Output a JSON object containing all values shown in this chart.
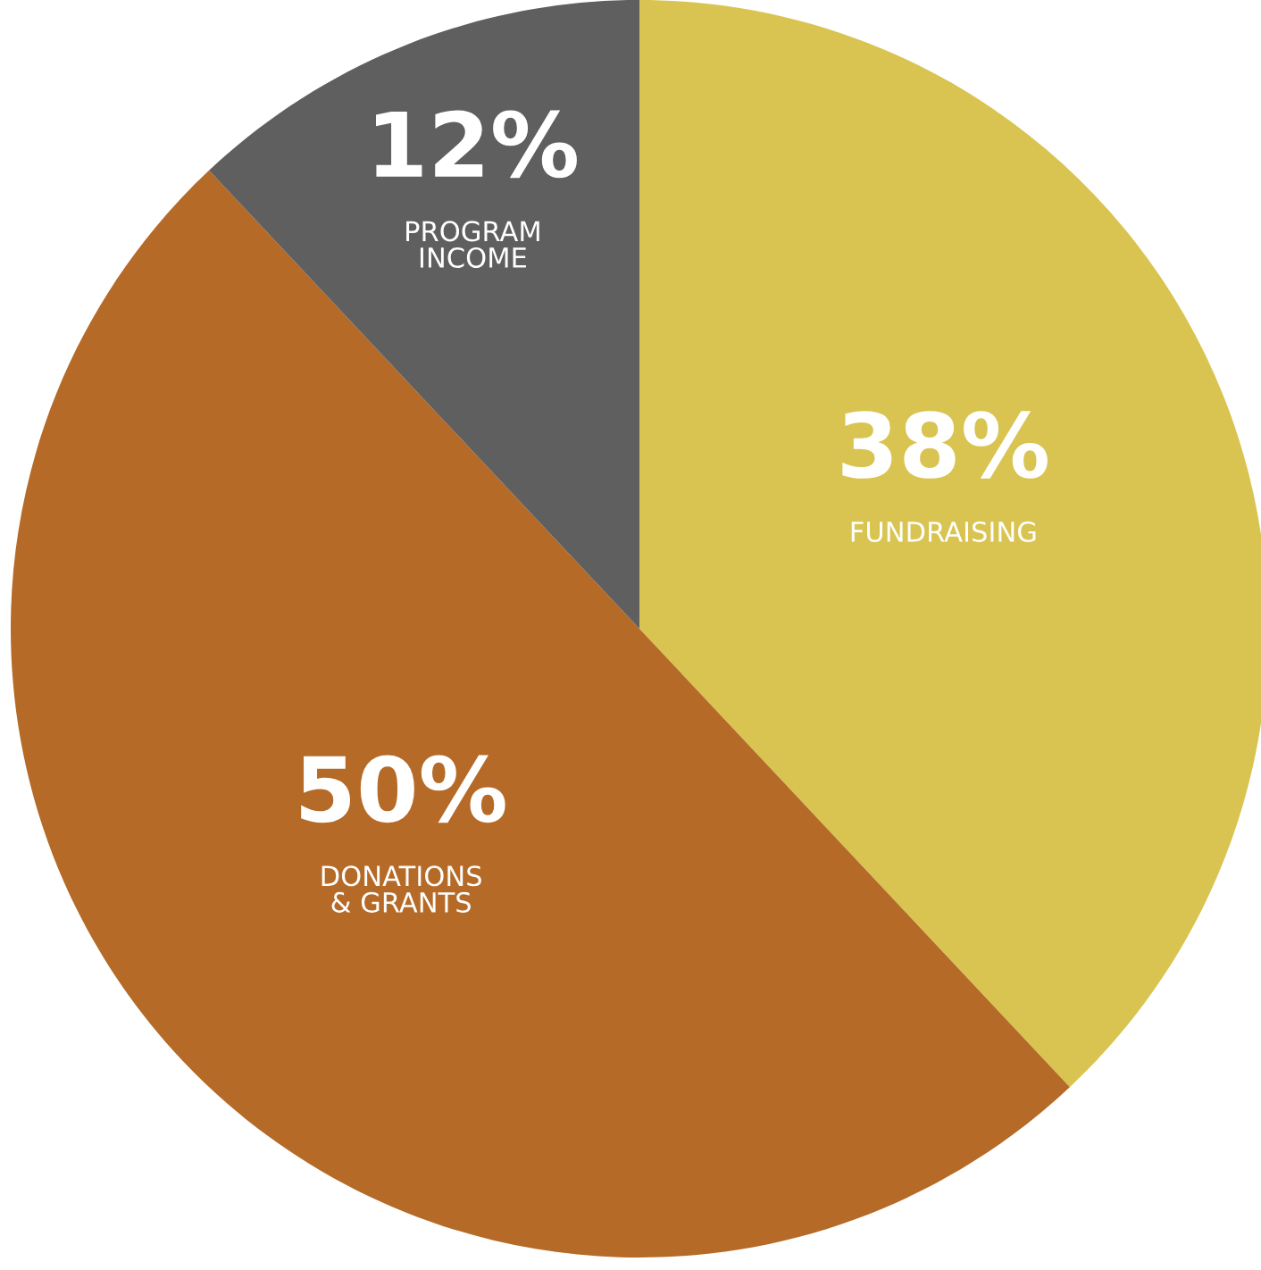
{
  "chart_data": {
    "type": "pie",
    "categories": [
      "FUNDRAISING",
      "DONATIONS\n& GRANTS",
      "PROGRAM\nINCOME"
    ],
    "values": [
      38,
      50,
      12
    ],
    "value_labels": [
      "38%",
      "50%",
      "12%"
    ],
    "colors": [
      "#d9c452",
      "#b56a27",
      "#5f5f5f"
    ],
    "legend": false
  }
}
